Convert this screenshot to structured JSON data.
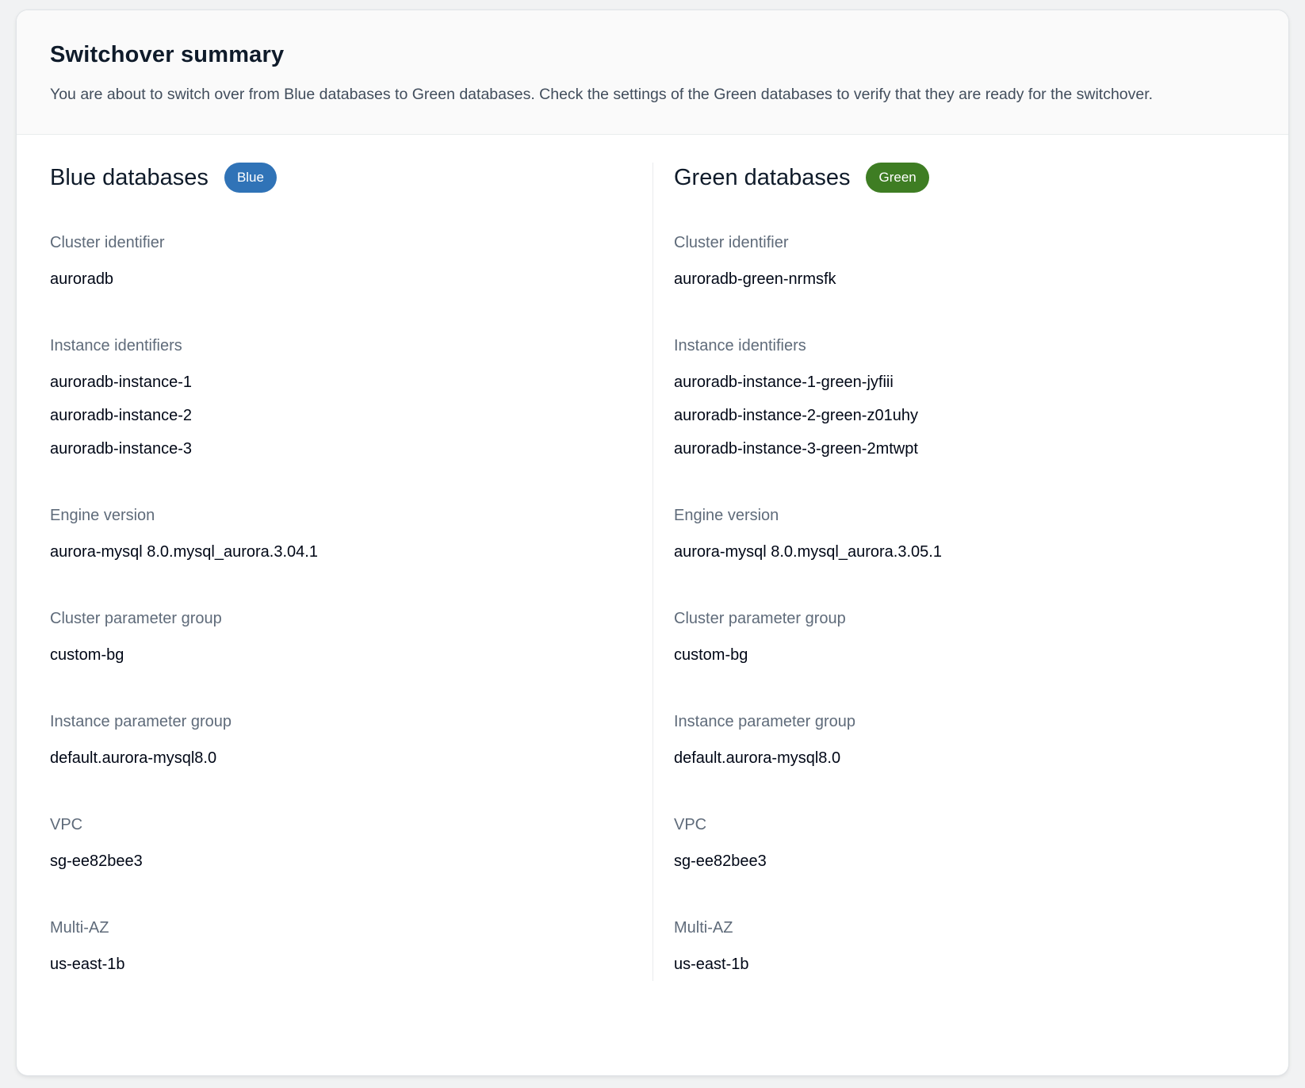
{
  "colors": {
    "page_background": "#f1f2f3",
    "panel_background": "#ffffff",
    "header_background": "#fafafa",
    "divider": "#e9ebed",
    "label_gray": "#5f6b7a",
    "value_dark": "#000716",
    "badge_blue": "#3073b7",
    "badge_green": "#3e7d23"
  },
  "panel": {
    "header": {
      "title": "Switchover summary",
      "description": "You are about to switch over from Blue databases to Green databases. Check the settings of the Green databases to verify that they are ready for the switchover."
    },
    "columns": [
      {
        "heading": "Blue databases",
        "badge": {
          "label": "Blue",
          "color": "#3073b7"
        },
        "fields": [
          {
            "label": "Cluster identifier",
            "values": [
              "auroradb"
            ]
          },
          {
            "label": "Instance identifiers",
            "values": [
              "auroradb-instance-1",
              "auroradb-instance-2",
              "auroradb-instance-3"
            ]
          },
          {
            "label": "Engine version",
            "values": [
              "aurora-mysql 8.0.mysql_aurora.3.04.1"
            ]
          },
          {
            "label": "Cluster parameter group",
            "values": [
              "custom-bg"
            ]
          },
          {
            "label": "Instance parameter group",
            "values": [
              "default.aurora-mysql8.0"
            ]
          },
          {
            "label": "VPC",
            "values": [
              "sg-ee82bee3"
            ]
          },
          {
            "label": "Multi-AZ",
            "values": [
              "us-east-1b"
            ]
          }
        ]
      },
      {
        "heading": "Green databases",
        "badge": {
          "label": "Green",
          "color": "#3e7d23"
        },
        "fields": [
          {
            "label": "Cluster identifier",
            "values": [
              "auroradb-green-nrmsfk"
            ]
          },
          {
            "label": "Instance identifiers",
            "values": [
              "auroradb-instance-1-green-jyfiii",
              "auroradb-instance-2-green-z01uhy",
              "auroradb-instance-3-green-2mtwpt"
            ]
          },
          {
            "label": "Engine version",
            "values": [
              "aurora-mysql 8.0.mysql_aurora.3.05.1"
            ]
          },
          {
            "label": "Cluster parameter group",
            "values": [
              "custom-bg"
            ]
          },
          {
            "label": "Instance parameter group",
            "values": [
              "default.aurora-mysql8.0"
            ]
          },
          {
            "label": "VPC",
            "values": [
              "sg-ee82bee3"
            ]
          },
          {
            "label": "Multi-AZ",
            "values": [
              "us-east-1b"
            ]
          }
        ]
      }
    ]
  }
}
